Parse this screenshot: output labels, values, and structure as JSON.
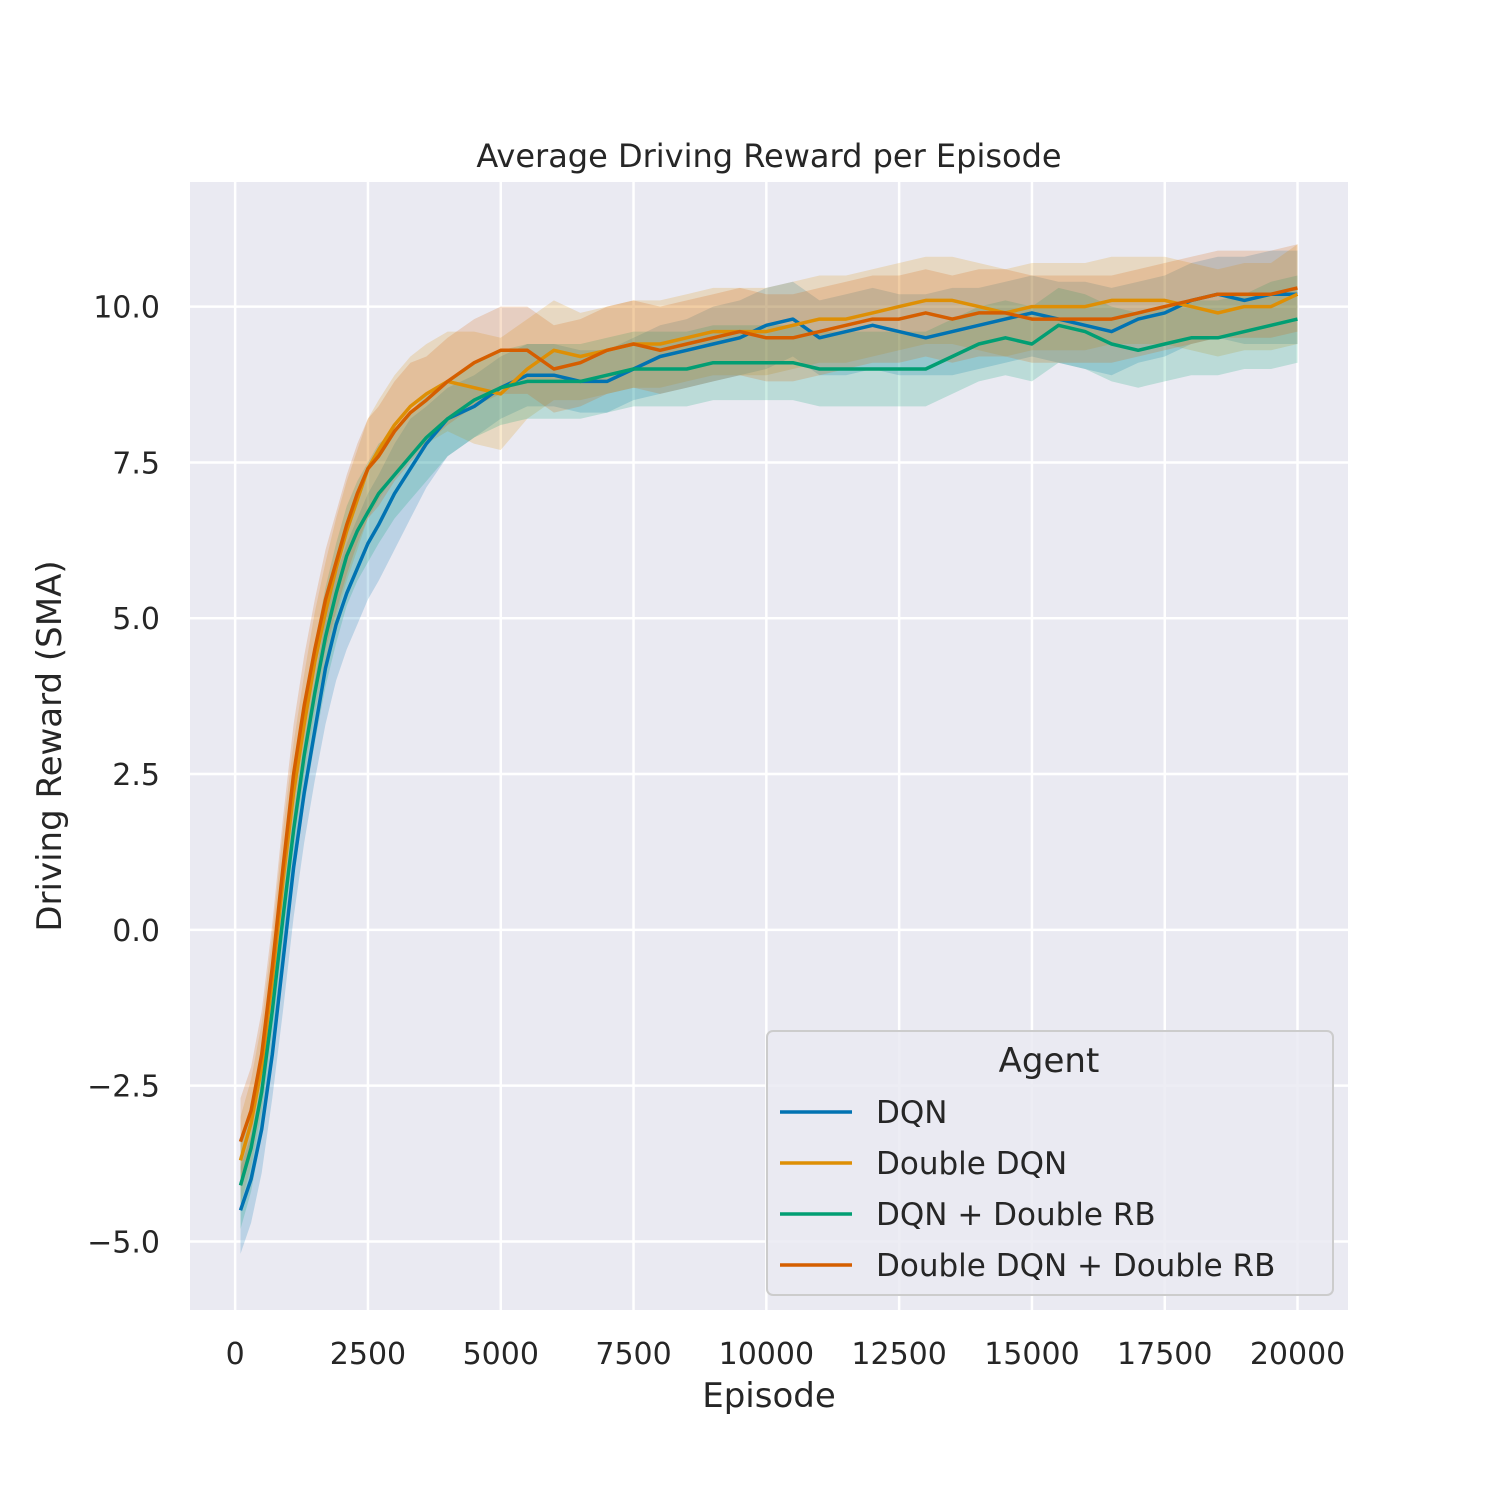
{
  "chart_data": {
    "type": "line",
    "title": "Average Driving Reward per Episode",
    "xlabel": "Episode",
    "ylabel": "Driving Reward (SMA)",
    "xlim": [
      -850,
      20950
    ],
    "ylim": [
      -6.1,
      12.0
    ],
    "xticks": [
      0,
      2500,
      5000,
      7500,
      10000,
      12500,
      15000,
      17500,
      20000
    ],
    "xtick_labels": [
      "0",
      "2500",
      "5000",
      "7500",
      "10000",
      "12500",
      "15000",
      "17500",
      "20000"
    ],
    "yticks": [
      -5.0,
      -2.5,
      0.0,
      2.5,
      5.0,
      7.5,
      10.0
    ],
    "ytick_labels": [
      "−5.0",
      "−2.5",
      "0.0",
      "2.5",
      "5.0",
      "7.5",
      "10.0"
    ],
    "grid": true,
    "background_color": "#eaeaf2",
    "legend": {
      "title": "Agent",
      "position": "lower-right"
    },
    "series": [
      {
        "name": "DQN",
        "color": "#0173b2",
        "x": [
          100,
          300,
          500,
          700,
          900,
          1100,
          1300,
          1500,
          1700,
          1900,
          2100,
          2300,
          2500,
          2700,
          3000,
          3300,
          3600,
          4000,
          4500,
          5000,
          5500,
          6000,
          6500,
          7000,
          7500,
          8000,
          8500,
          9000,
          9500,
          10000,
          10500,
          11000,
          11500,
          12000,
          12500,
          13000,
          13500,
          14000,
          14500,
          15000,
          15500,
          16000,
          16500,
          17000,
          17500,
          18000,
          18500,
          19000,
          19500,
          20000
        ],
        "y": [
          -4.5,
          -4.0,
          -3.2,
          -2.0,
          -0.5,
          1.0,
          2.2,
          3.2,
          4.2,
          4.9,
          5.4,
          5.8,
          6.2,
          6.5,
          7.0,
          7.4,
          7.8,
          8.2,
          8.4,
          8.7,
          8.9,
          8.9,
          8.8,
          8.8,
          9.0,
          9.2,
          9.3,
          9.4,
          9.5,
          9.7,
          9.8,
          9.5,
          9.6,
          9.7,
          9.6,
          9.5,
          9.6,
          9.7,
          9.8,
          9.9,
          9.8,
          9.7,
          9.6,
          9.8,
          9.9,
          10.1,
          10.2,
          10.1,
          10.2,
          10.2
        ],
        "lower": [
          -5.2,
          -4.7,
          -3.9,
          -2.7,
          -1.3,
          0.2,
          1.4,
          2.4,
          3.3,
          4.0,
          4.5,
          4.9,
          5.3,
          5.6,
          6.1,
          6.6,
          7.1,
          7.6,
          7.9,
          8.2,
          8.4,
          8.4,
          8.3,
          8.3,
          8.5,
          8.6,
          8.7,
          8.8,
          8.9,
          9.0,
          9.2,
          8.9,
          8.9,
          9.0,
          8.9,
          8.9,
          8.9,
          9.0,
          9.1,
          9.2,
          9.1,
          9.0,
          8.9,
          9.1,
          9.2,
          9.4,
          9.5,
          9.4,
          9.4,
          9.4
        ],
        "upper": [
          -3.8,
          -3.3,
          -2.5,
          -1.3,
          0.3,
          1.8,
          3.0,
          4.0,
          5.0,
          5.7,
          6.2,
          6.6,
          7.0,
          7.3,
          7.8,
          8.2,
          8.4,
          8.7,
          8.9,
          9.2,
          9.4,
          9.4,
          9.3,
          9.3,
          9.5,
          9.7,
          9.8,
          10.0,
          10.1,
          10.3,
          10.4,
          10.1,
          10.2,
          10.3,
          10.2,
          10.2,
          10.3,
          10.3,
          10.4,
          10.5,
          10.4,
          10.4,
          10.3,
          10.4,
          10.5,
          10.7,
          10.8,
          10.8,
          10.9,
          10.9
        ]
      },
      {
        "name": "Double DQN",
        "color": "#de8f05",
        "x": [
          100,
          300,
          500,
          700,
          900,
          1100,
          1300,
          1500,
          1700,
          1900,
          2100,
          2300,
          2500,
          2700,
          3000,
          3300,
          3600,
          4000,
          4500,
          5000,
          5500,
          6000,
          6500,
          7000,
          7500,
          8000,
          8500,
          9000,
          9500,
          10000,
          10500,
          11000,
          11500,
          12000,
          12500,
          13000,
          13500,
          14000,
          14500,
          15000,
          15500,
          16000,
          16500,
          17000,
          17500,
          18000,
          18500,
          19000,
          19500,
          20000
        ],
        "y": [
          -3.7,
          -3.1,
          -2.2,
          -0.8,
          0.8,
          2.2,
          3.3,
          4.3,
          5.1,
          5.8,
          6.4,
          6.9,
          7.4,
          7.7,
          8.1,
          8.4,
          8.6,
          8.8,
          8.7,
          8.6,
          9.0,
          9.3,
          9.2,
          9.3,
          9.4,
          9.4,
          9.5,
          9.6,
          9.6,
          9.6,
          9.7,
          9.8,
          9.8,
          9.9,
          10.0,
          10.1,
          10.1,
          10.0,
          9.9,
          10.0,
          10.0,
          10.0,
          10.1,
          10.1,
          10.1,
          10.0,
          9.9,
          10.0,
          10.0,
          10.2
        ],
        "lower": [
          -4.4,
          -3.8,
          -2.9,
          -1.5,
          0.0,
          1.4,
          2.5,
          3.5,
          4.3,
          5.0,
          5.6,
          6.1,
          6.6,
          6.9,
          7.3,
          7.6,
          7.8,
          8.0,
          7.8,
          7.7,
          8.2,
          8.5,
          8.5,
          8.6,
          8.7,
          8.7,
          8.8,
          8.9,
          8.9,
          8.9,
          9.0,
          9.1,
          9.1,
          9.2,
          9.3,
          9.4,
          9.4,
          9.3,
          9.2,
          9.3,
          9.3,
          9.3,
          9.4,
          9.4,
          9.4,
          9.3,
          9.2,
          9.3,
          9.3,
          9.4
        ],
        "upper": [
          -3.0,
          -2.4,
          -1.5,
          -0.1,
          1.6,
          3.0,
          4.1,
          5.1,
          5.9,
          6.6,
          7.2,
          7.7,
          8.2,
          8.5,
          8.9,
          9.2,
          9.4,
          9.6,
          9.6,
          9.5,
          9.8,
          10.1,
          9.9,
          10.0,
          10.1,
          10.1,
          10.2,
          10.3,
          10.3,
          10.3,
          10.4,
          10.5,
          10.5,
          10.6,
          10.7,
          10.8,
          10.8,
          10.7,
          10.6,
          10.7,
          10.7,
          10.7,
          10.8,
          10.8,
          10.8,
          10.7,
          10.6,
          10.7,
          10.7,
          11.0
        ]
      },
      {
        "name": "DQN + Double RB",
        "color": "#029e73",
        "x": [
          100,
          300,
          500,
          700,
          900,
          1100,
          1300,
          1500,
          1700,
          1900,
          2100,
          2300,
          2500,
          2700,
          3000,
          3300,
          3600,
          4000,
          4500,
          5000,
          5500,
          6000,
          6500,
          7000,
          7500,
          8000,
          8500,
          9000,
          9500,
          10000,
          10500,
          11000,
          11500,
          12000,
          12500,
          13000,
          13500,
          14000,
          14500,
          15000,
          15500,
          16000,
          16500,
          17000,
          17500,
          18000,
          18500,
          19000,
          19500,
          20000
        ],
        "y": [
          -4.1,
          -3.5,
          -2.6,
          -1.3,
          0.2,
          1.6,
          2.8,
          3.8,
          4.7,
          5.4,
          6.0,
          6.4,
          6.7,
          7.0,
          7.3,
          7.6,
          7.9,
          8.2,
          8.5,
          8.7,
          8.8,
          8.8,
          8.8,
          8.9,
          9.0,
          9.0,
          9.0,
          9.1,
          9.1,
          9.1,
          9.1,
          9.0,
          9.0,
          9.0,
          9.0,
          9.0,
          9.2,
          9.4,
          9.5,
          9.4,
          9.7,
          9.6,
          9.4,
          9.3,
          9.4,
          9.5,
          9.5,
          9.6,
          9.7,
          9.8
        ],
        "lower": [
          -4.8,
          -4.2,
          -3.3,
          -2.0,
          -0.6,
          0.8,
          2.0,
          3.0,
          3.9,
          4.6,
          5.2,
          5.6,
          5.9,
          6.2,
          6.6,
          6.9,
          7.2,
          7.6,
          7.9,
          8.1,
          8.2,
          8.2,
          8.2,
          8.3,
          8.4,
          8.4,
          8.4,
          8.5,
          8.5,
          8.5,
          8.5,
          8.4,
          8.4,
          8.4,
          8.4,
          8.4,
          8.6,
          8.8,
          8.9,
          8.8,
          9.1,
          9.0,
          8.8,
          8.7,
          8.8,
          8.9,
          8.9,
          9.0,
          9.0,
          9.1
        ],
        "upper": [
          -3.4,
          -2.8,
          -1.9,
          -0.6,
          1.0,
          2.4,
          3.6,
          4.6,
          5.5,
          6.2,
          6.8,
          7.2,
          7.5,
          7.8,
          8.0,
          8.3,
          8.6,
          8.8,
          9.1,
          9.3,
          9.4,
          9.4,
          9.4,
          9.5,
          9.6,
          9.6,
          9.6,
          9.7,
          9.7,
          9.7,
          9.7,
          9.6,
          9.6,
          9.6,
          9.6,
          9.6,
          9.8,
          10.0,
          10.1,
          10.0,
          10.3,
          10.2,
          10.0,
          9.9,
          10.0,
          10.1,
          10.1,
          10.2,
          10.4,
          10.5
        ]
      },
      {
        "name": "Double DQN + Double RB",
        "color": "#d55e00",
        "x": [
          100,
          300,
          500,
          700,
          900,
          1100,
          1300,
          1500,
          1700,
          1900,
          2100,
          2300,
          2500,
          2700,
          3000,
          3300,
          3600,
          4000,
          4500,
          5000,
          5500,
          6000,
          6500,
          7000,
          7500,
          8000,
          8500,
          9000,
          9500,
          10000,
          10500,
          11000,
          11500,
          12000,
          12500,
          13000,
          13500,
          14000,
          14500,
          15000,
          15500,
          16000,
          16500,
          17000,
          17500,
          18000,
          18500,
          19000,
          19500,
          20000
        ],
        "y": [
          -3.4,
          -2.9,
          -2.0,
          -0.6,
          1.0,
          2.5,
          3.6,
          4.5,
          5.3,
          5.9,
          6.5,
          7.0,
          7.4,
          7.6,
          8.0,
          8.3,
          8.5,
          8.8,
          9.1,
          9.3,
          9.3,
          9.0,
          9.1,
          9.3,
          9.4,
          9.3,
          9.4,
          9.5,
          9.6,
          9.5,
          9.5,
          9.6,
          9.7,
          9.8,
          9.8,
          9.9,
          9.8,
          9.9,
          9.9,
          9.8,
          9.8,
          9.8,
          9.8,
          9.9,
          10.0,
          10.1,
          10.2,
          10.2,
          10.2,
          10.3
        ],
        "lower": [
          -4.1,
          -3.6,
          -2.7,
          -1.3,
          0.2,
          1.7,
          2.8,
          3.7,
          4.5,
          5.1,
          5.7,
          6.2,
          6.6,
          6.8,
          7.2,
          7.5,
          7.8,
          8.1,
          8.4,
          8.6,
          8.6,
          8.3,
          8.4,
          8.6,
          8.7,
          8.6,
          8.7,
          8.8,
          8.9,
          8.8,
          8.8,
          8.9,
          9.0,
          9.1,
          9.1,
          9.2,
          9.1,
          9.2,
          9.2,
          9.1,
          9.1,
          9.1,
          9.1,
          9.2,
          9.3,
          9.4,
          9.5,
          9.5,
          9.5,
          9.6
        ],
        "upper": [
          -2.7,
          -2.2,
          -1.3,
          0.1,
          1.8,
          3.3,
          4.4,
          5.3,
          6.1,
          6.7,
          7.3,
          7.8,
          8.2,
          8.4,
          8.8,
          9.1,
          9.2,
          9.5,
          9.8,
          10.0,
          10.0,
          9.7,
          9.8,
          10.0,
          10.1,
          10.0,
          10.1,
          10.2,
          10.3,
          10.2,
          10.2,
          10.3,
          10.4,
          10.5,
          10.5,
          10.6,
          10.5,
          10.6,
          10.6,
          10.5,
          10.5,
          10.5,
          10.5,
          10.6,
          10.7,
          10.8,
          10.9,
          10.9,
          10.9,
          11.0
        ]
      }
    ]
  }
}
